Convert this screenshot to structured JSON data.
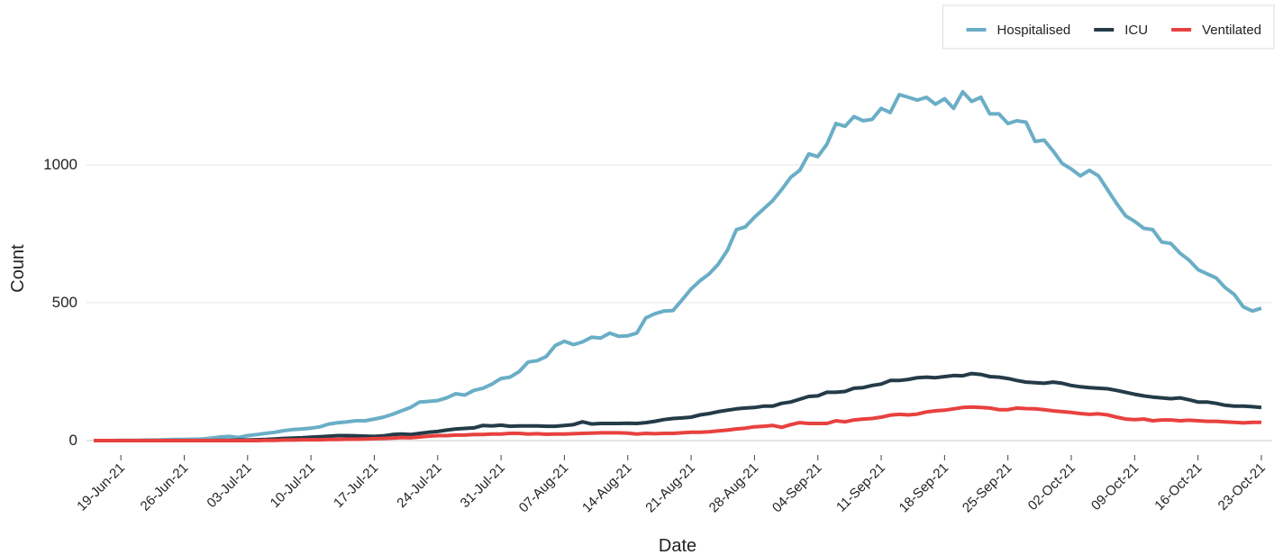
{
  "chart_data": {
    "type": "line",
    "x_label": "Date",
    "y_label": "Count",
    "x": [
      "16-Jun-21",
      "17-Jun-21",
      "18-Jun-21",
      "19-Jun-21",
      "20-Jun-21",
      "21-Jun-21",
      "22-Jun-21",
      "23-Jun-21",
      "24-Jun-21",
      "25-Jun-21",
      "26-Jun-21",
      "27-Jun-21",
      "28-Jun-21",
      "29-Jun-21",
      "30-Jun-21",
      "01-Jul-21",
      "02-Jul-21",
      "03-Jul-21",
      "04-Jul-21",
      "05-Jul-21",
      "06-Jul-21",
      "07-Jul-21",
      "08-Jul-21",
      "09-Jul-21",
      "10-Jul-21",
      "11-Jul-21",
      "12-Jul-21",
      "13-Jul-21",
      "14-Jul-21",
      "15-Jul-21",
      "16-Jul-21",
      "17-Jul-21",
      "18-Jul-21",
      "19-Jul-21",
      "20-Jul-21",
      "21-Jul-21",
      "22-Jul-21",
      "23-Jul-21",
      "24-Jul-21",
      "25-Jul-21",
      "26-Jul-21",
      "27-Jul-21",
      "28-Jul-21",
      "29-Jul-21",
      "30-Jul-21",
      "31-Jul-21",
      "01-Aug-21",
      "02-Aug-21",
      "03-Aug-21",
      "04-Aug-21",
      "05-Aug-21",
      "06-Aug-21",
      "07-Aug-21",
      "08-Aug-21",
      "09-Aug-21",
      "10-Aug-21",
      "11-Aug-21",
      "12-Aug-21",
      "13-Aug-21",
      "14-Aug-21",
      "15-Aug-21",
      "16-Aug-21",
      "17-Aug-21",
      "18-Aug-21",
      "19-Aug-21",
      "20-Aug-21",
      "21-Aug-21",
      "22-Aug-21",
      "23-Aug-21",
      "24-Aug-21",
      "25-Aug-21",
      "26-Aug-21",
      "27-Aug-21",
      "28-Aug-21",
      "29-Aug-21",
      "30-Aug-21",
      "31-Aug-21",
      "01-Sep-21",
      "02-Sep-21",
      "03-Sep-21",
      "04-Sep-21",
      "05-Sep-21",
      "06-Sep-21",
      "07-Sep-21",
      "08-Sep-21",
      "09-Sep-21",
      "10-Sep-21",
      "11-Sep-21",
      "12-Sep-21",
      "13-Sep-21",
      "14-Sep-21",
      "15-Sep-21",
      "16-Sep-21",
      "17-Sep-21",
      "18-Sep-21",
      "19-Sep-21",
      "20-Sep-21",
      "21-Sep-21",
      "22-Sep-21",
      "23-Sep-21",
      "24-Sep-21",
      "25-Sep-21",
      "26-Sep-21",
      "27-Sep-21",
      "28-Sep-21",
      "29-Sep-21",
      "30-Sep-21",
      "01-Oct-21",
      "02-Oct-21",
      "03-Oct-21",
      "04-Oct-21",
      "05-Oct-21",
      "06-Oct-21",
      "07-Oct-21",
      "08-Oct-21",
      "09-Oct-21",
      "10-Oct-21",
      "11-Oct-21",
      "12-Oct-21",
      "13-Oct-21",
      "14-Oct-21",
      "15-Oct-21",
      "16-Oct-21",
      "17-Oct-21",
      "18-Oct-21",
      "19-Oct-21",
      "20-Oct-21",
      "21-Oct-21",
      "22-Oct-21",
      "23-Oct-21"
    ],
    "xticks": [
      "19-Jun-21",
      "26-Jun-21",
      "03-Jul-21",
      "10-Jul-21",
      "17-Jul-21",
      "24-Jul-21",
      "31-Jul-21",
      "07-Aug-21",
      "14-Aug-21",
      "21-Aug-21",
      "28-Aug-21",
      "04-Sep-21",
      "11-Sep-21",
      "18-Sep-21",
      "25-Sep-21",
      "02-Oct-21",
      "09-Oct-21",
      "16-Oct-21",
      "23-Oct-21"
    ],
    "ylim": [
      -40,
      1400
    ],
    "yticks": [
      0,
      500,
      1000
    ],
    "grid": true,
    "legend_position": "top-right",
    "series": [
      {
        "name": "Hospitalised",
        "color": "#6aaec6",
        "values": [
          0,
          0,
          0,
          1,
          1,
          1,
          2,
          2,
          3,
          4,
          4,
          5,
          6,
          9,
          13,
          15,
          11,
          18,
          22,
          26,
          30,
          36,
          40,
          42,
          45,
          50,
          60,
          65,
          68,
          72,
          72,
          78,
          85,
          95,
          108,
          120,
          140,
          142,
          145,
          155,
          170,
          165,
          182,
          190,
          205,
          225,
          230,
          250,
          285,
          290,
          305,
          345,
          360,
          348,
          358,
          375,
          372,
          390,
          378,
          380,
          390,
          445,
          460,
          470,
          472,
          510,
          550,
          580,
          605,
          640,
          690,
          765,
          775,
          810,
          840,
          870,
          910,
          955,
          980,
          1040,
          1030,
          1075,
          1150,
          1140,
          1175,
          1160,
          1165,
          1205,
          1190,
          1255,
          1245,
          1235,
          1245,
          1220,
          1240,
          1205,
          1265,
          1230,
          1245,
          1185,
          1185,
          1150,
          1160,
          1155,
          1085,
          1090,
          1050,
          1005,
          985,
          960,
          980,
          960,
          910,
          860,
          815,
          795,
          770,
          765,
          720,
          715,
          680,
          655,
          620,
          605,
          590,
          555,
          530,
          485,
          470,
          480
        ]
      },
      {
        "name": "ICU",
        "color": "#243b48",
        "values": [
          0,
          0,
          0,
          0,
          0,
          0,
          0,
          0,
          0,
          0,
          0,
          0,
          0,
          0,
          1,
          1,
          2,
          2,
          3,
          4,
          6,
          8,
          9,
          10,
          12,
          14,
          16,
          18,
          18,
          17,
          16,
          15,
          17,
          22,
          24,
          22,
          26,
          30,
          33,
          38,
          42,
          44,
          46,
          55,
          53,
          56,
          52,
          53,
          53,
          53,
          52,
          52,
          55,
          58,
          68,
          60,
          62,
          62,
          62,
          63,
          62,
          65,
          70,
          76,
          80,
          82,
          85,
          93,
          98,
          105,
          110,
          115,
          118,
          120,
          125,
          125,
          135,
          140,
          150,
          160,
          162,
          175,
          175,
          178,
          190,
          192,
          200,
          205,
          218,
          218,
          222,
          228,
          230,
          228,
          232,
          236,
          235,
          243,
          240,
          232,
          230,
          225,
          218,
          212,
          210,
          208,
          212,
          208,
          200,
          195,
          192,
          190,
          188,
          182,
          175,
          168,
          162,
          158,
          155,
          152,
          155,
          148,
          140,
          140,
          135,
          128,
          125,
          125,
          123,
          120
        ]
      },
      {
        "name": "Ventilated",
        "color": "#e8413f",
        "values": [
          0,
          0,
          0,
          0,
          0,
          0,
          0,
          0,
          0,
          0,
          0,
          0,
          0,
          0,
          0,
          0,
          0,
          0,
          0,
          1,
          1,
          2,
          2,
          3,
          3,
          3,
          4,
          4,
          5,
          5,
          6,
          7,
          8,
          9,
          11,
          10,
          13,
          16,
          18,
          18,
          20,
          20,
          22,
          22,
          24,
          24,
          26,
          26,
          24,
          25,
          23,
          24,
          24,
          25,
          26,
          27,
          28,
          28,
          28,
          27,
          24,
          26,
          25,
          26,
          26,
          28,
          30,
          30,
          32,
          35,
          38,
          42,
          45,
          50,
          52,
          55,
          48,
          58,
          65,
          62,
          62,
          62,
          72,
          68,
          75,
          78,
          80,
          85,
          92,
          95,
          93,
          96,
          104,
          108,
          110,
          115,
          120,
          122,
          120,
          118,
          112,
          112,
          118,
          116,
          115,
          112,
          108,
          105,
          102,
          98,
          95,
          97,
          93,
          85,
          78,
          76,
          78,
          72,
          75,
          75,
          72,
          74,
          72,
          70,
          70,
          68,
          66,
          64,
          66,
          66
        ]
      }
    ]
  }
}
